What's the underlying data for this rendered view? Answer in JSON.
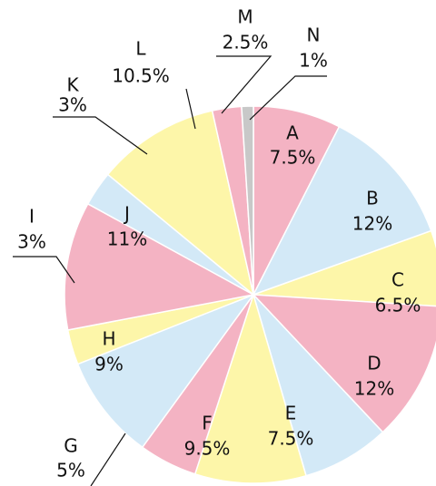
{
  "chart_data": {
    "type": "pie",
    "categories": [
      "A",
      "B",
      "C",
      "D",
      "E",
      "F",
      "G",
      "H",
      "I",
      "J",
      "K",
      "L",
      "M",
      "N"
    ],
    "values": [
      7.5,
      12,
      6.5,
      12,
      7.5,
      9.5,
      5,
      9,
      3,
      11,
      3,
      10.5,
      2.5,
      1
    ],
    "value_labels": [
      "7.5%",
      "12%",
      "6.5%",
      "12%",
      "7.5%",
      "9.5%",
      "5%",
      "9%",
      "3%",
      "11%",
      "3%",
      "10.5%",
      "2.5%",
      "1%"
    ],
    "colors": [
      "#f4b3c3",
      "#d3e9f7",
      "#fdf6a9",
      "#f4b3c3",
      "#d3e9f7",
      "#fdf6a9",
      "#f4b3c3",
      "#d3e9f7",
      "#fdf6a9",
      "#f4b3c3",
      "#d3e9f7",
      "#fdf6a9",
      "#f4b3c3",
      "#c8c8c8"
    ]
  }
}
